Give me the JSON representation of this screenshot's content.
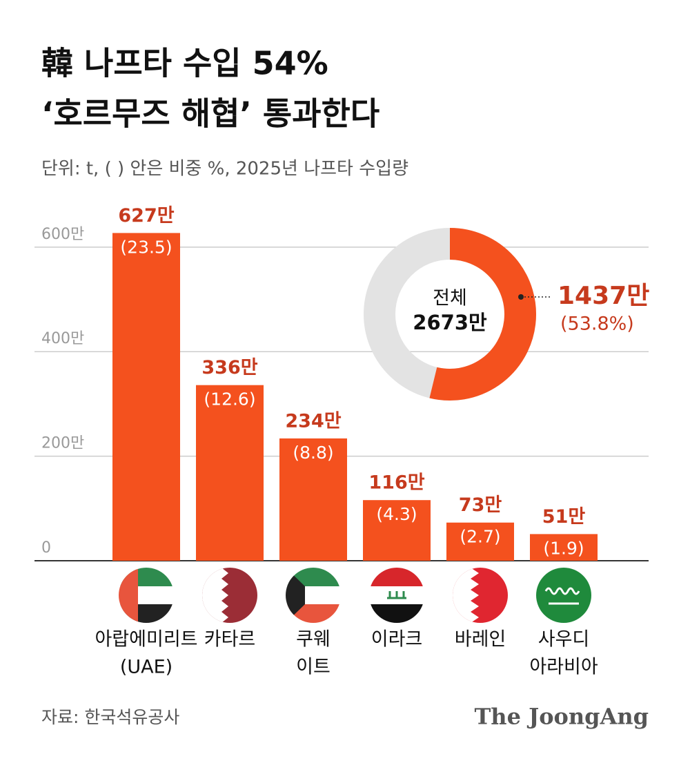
{
  "chart_data": {
    "type": "bar",
    "title": [
      "韓 나프타 수입 54%",
      "‘호르무즈 해협’ 통과한다"
    ],
    "subtitle": "단위: t, ( ) 안은 비중 %, 2025년 나프타 수입량",
    "categories": [
      [
        "아랍에미리트",
        "(UAE)"
      ],
      [
        "카타르"
      ],
      [
        "쿠웨",
        "이트"
      ],
      [
        "이라크"
      ],
      [
        "바레인"
      ],
      [
        "사우디",
        "아라비아"
      ]
    ],
    "values": [
      627,
      336,
      234,
      116,
      73,
      51
    ],
    "value_labels": [
      "627만",
      "336만",
      "234만",
      "116만",
      "73만",
      "51만"
    ],
    "shares": [
      23.5,
      12.6,
      8.8,
      4.3,
      2.7,
      1.9
    ],
    "share_labels": [
      "(23.5)",
      "(12.6)",
      "(8.8)",
      "(4.3)",
      "(2.7)",
      "(1.9)"
    ],
    "color": "#f4511e",
    "ylim": [
      0,
      650
    ],
    "yticks": [
      0,
      {
        "value": 200,
        "label": "200만"
      },
      {
        "value": 400,
        "label": "400만"
      },
      {
        "value": 600,
        "label": "600만"
      }
    ],
    "grid": true,
    "donut": {
      "label": "전체",
      "total": 2673,
      "total_label": "2673만",
      "value": 1437,
      "value_label": "1437만",
      "share": 53.8,
      "share_label": "(53.8%)",
      "color": "#f4511e",
      "rest_color": "#e3e3e3"
    },
    "source": "자료: 한국석유공사",
    "brand": "The JoongAng"
  }
}
